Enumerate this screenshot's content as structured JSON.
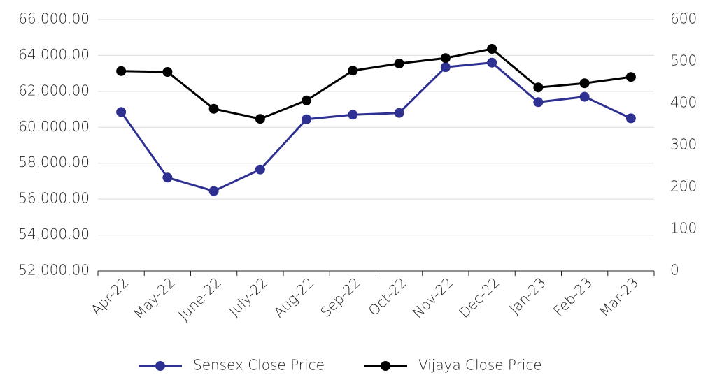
{
  "chart_data": {
    "type": "line",
    "categories": [
      "Apr-22",
      "May-22",
      "June-22",
      "July-22",
      "Aug-22",
      "Sep-22",
      "Oct-22",
      "Nov-22",
      "Dec-22",
      "Jan-23",
      "Feb-23",
      "Mar-23"
    ],
    "series": [
      {
        "name": "Sensex Close Price",
        "color": "#2e3192",
        "values": [
          60850,
          57200,
          56450,
          57650,
          60450,
          60700,
          60800,
          63350,
          63600,
          61400,
          61700,
          60500
        ]
      },
      {
        "name": "Vijaya Close Price",
        "color": "#000000",
        "axis": "y2",
        "values": [
          477,
          475,
          387,
          363,
          407,
          478,
          495,
          508,
          530,
          438,
          448,
          463
        ]
      }
    ],
    "ylim": [
      52000,
      66000
    ],
    "yticks": [
      {
        "value": 52000,
        "label": "52,000.00"
      },
      {
        "value": 54000,
        "label": "54,000.00"
      },
      {
        "value": 56000,
        "label": "56,000.00"
      },
      {
        "value": 58000,
        "label": "58,000.00"
      },
      {
        "value": 60000,
        "label": "60,000.00"
      },
      {
        "value": 62000,
        "label": "62,000.00"
      },
      {
        "value": 64000,
        "label": "64,000.00"
      },
      {
        "value": 66000,
        "label": "66,000.00"
      }
    ],
    "y2lim": [
      0,
      600
    ],
    "y2ticks": [
      0,
      100,
      200,
      300,
      400,
      500,
      600
    ],
    "grid": true,
    "legend": "bottom"
  }
}
